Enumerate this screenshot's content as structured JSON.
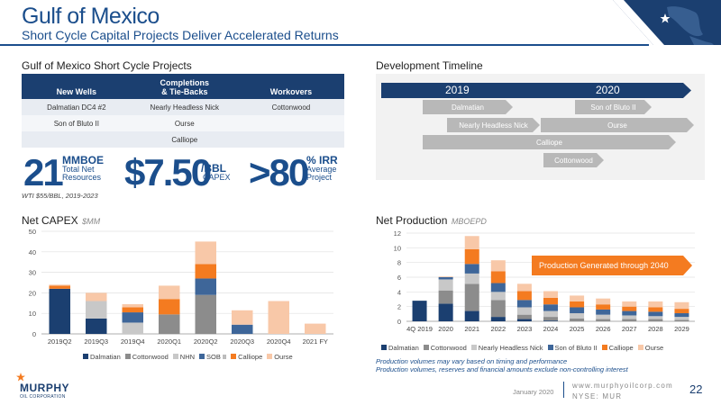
{
  "header": {
    "title": "Gulf of Mexico",
    "subtitle": "Short Cycle Capital Projects Deliver Accelerated Returns"
  },
  "projects": {
    "title": "Gulf of Mexico Short Cycle Projects",
    "columns": [
      "New Wells",
      "Completions\n& Tie-Backs",
      "Workovers"
    ],
    "col2_line1": "Completions",
    "col2_line2": "& Tie-Backs",
    "rows": [
      [
        "Dalmatian DC4 #2",
        "Nearly Headless Nick",
        "Cottonwood"
      ],
      [
        "Son of Bluto II",
        "Ourse",
        ""
      ],
      [
        "",
        "Calliope",
        ""
      ]
    ]
  },
  "metrics": {
    "resources_value": "21",
    "resources_unit": "MMBOE",
    "resources_label1": "Total Net",
    "resources_label2": "Resources",
    "capex_value": "$7.50",
    "capex_unit": "/BBL",
    "capex_label": "CAPEX",
    "irr_value": ">80",
    "irr_unit": "% IRR",
    "irr_label1": "Average",
    "irr_label2": "Project",
    "price_note": "WTI $55/BBL, 2019-2023"
  },
  "timeline": {
    "title": "Development Timeline",
    "years": [
      "2019",
      "2020"
    ],
    "bars": [
      {
        "label": "Dalmatian"
      },
      {
        "label": "Son of Bluto II"
      },
      {
        "label": "Nearly Headless Nick"
      },
      {
        "label": "Ourse"
      },
      {
        "label": "Calliope"
      },
      {
        "label": "Cottonwood"
      }
    ]
  },
  "colors": {
    "Dalmatian": "#1b3f70",
    "Cottonwood": "#8c8c8c",
    "NHN": "#c8c8c8",
    "SOB II": "#3e6699",
    "Calliope": "#f47b20",
    "Ourse": "#f8c8a8"
  },
  "capex": {
    "title": "Net CAPEX",
    "unit": "$MM",
    "legend": [
      "Dalmatian",
      "Cottonwood",
      "NHN",
      "SOB II",
      "Calliope",
      "Ourse"
    ]
  },
  "production": {
    "title": "Net Production",
    "unit": "MBOEPD",
    "callout": "Production Generated through 2040",
    "legend": [
      "Dalmatian",
      "Cottonwood",
      "Nearly Headless Nick",
      "Son of Bluto II",
      "Calliope",
      "Ourse"
    ],
    "notes": [
      "Production volumes may vary based on timing and performance",
      "Production volumes, reserves and financial amounts exclude non-controlling interest"
    ]
  },
  "chart_data": [
    {
      "type": "bar",
      "stacked": true,
      "title": "Net CAPEX",
      "ylabel": "$MM",
      "ylim": [
        0,
        50
      ],
      "yticks": [
        0,
        10,
        20,
        30,
        40,
        50
      ],
      "categories": [
        "2019Q2",
        "2019Q3",
        "2019Q4",
        "2020Q1",
        "2020Q2",
        "2020Q3",
        "2020Q4",
        "2021 FY"
      ],
      "series": [
        {
          "name": "Dalmatian",
          "values": [
            22,
            7.5,
            0,
            0,
            0,
            0,
            0,
            0
          ]
        },
        {
          "name": "Cottonwood",
          "values": [
            0,
            0,
            0,
            9.5,
            19,
            0,
            0,
            0
          ]
        },
        {
          "name": "NHN",
          "values": [
            0,
            8.5,
            5.5,
            0,
            0,
            0,
            0,
            0
          ]
        },
        {
          "name": "SOB II",
          "values": [
            0,
            0,
            5,
            0,
            8,
            4.5,
            0,
            0
          ]
        },
        {
          "name": "Calliope",
          "values": [
            1.5,
            0,
            2.5,
            7.5,
            7,
            0,
            0,
            0
          ]
        },
        {
          "name": "Ourse",
          "values": [
            0.5,
            4,
            1.5,
            6.5,
            11,
            7,
            16,
            5
          ]
        }
      ]
    },
    {
      "type": "bar",
      "stacked": true,
      "title": "Net Production",
      "ylabel": "MBOEPD",
      "ylim": [
        0,
        12
      ],
      "yticks": [
        0,
        2,
        4,
        6,
        8,
        10,
        12
      ],
      "categories": [
        "4Q 2019",
        "2020",
        "2021",
        "2022",
        "2023",
        "2024",
        "2025",
        "2026",
        "2027",
        "2028",
        "2029"
      ],
      "series": [
        {
          "name": "Dalmatian",
          "values": [
            2.8,
            2.4,
            1.4,
            0.6,
            0.3,
            0.1,
            0,
            0,
            0,
            0,
            0
          ]
        },
        {
          "name": "Cottonwood",
          "values": [
            0,
            1.8,
            3.7,
            2.3,
            0.6,
            0.5,
            0.4,
            0.3,
            0.3,
            0.3,
            0.2
          ]
        },
        {
          "name": "Nearly Headless Nick",
          "values": [
            0,
            1.5,
            1.4,
            1.1,
            1.0,
            0.8,
            0.7,
            0.6,
            0.5,
            0.4,
            0.4
          ]
        },
        {
          "name": "Son of Bluto II",
          "values": [
            0,
            0.3,
            1.3,
            1.2,
            1.0,
            0.9,
            0.8,
            0.7,
            0.6,
            0.6,
            0.5
          ]
        },
        {
          "name": "Calliope",
          "values": [
            0,
            0,
            2.0,
            1.6,
            1.2,
            0.9,
            0.8,
            0.7,
            0.6,
            0.6,
            0.6
          ]
        },
        {
          "name": "Ourse",
          "values": [
            0,
            0.1,
            1.8,
            1.5,
            1.0,
            0.9,
            0.8,
            0.8,
            0.7,
            0.8,
            0.9
          ]
        }
      ]
    }
  ],
  "footer": {
    "logo_text": "MURPHY",
    "logo_sub": "OIL CORPORATION",
    "date": "January 2020",
    "website": "www.murphyoilcorp.com",
    "ticker": "NYSE: MUR",
    "page": "22"
  }
}
